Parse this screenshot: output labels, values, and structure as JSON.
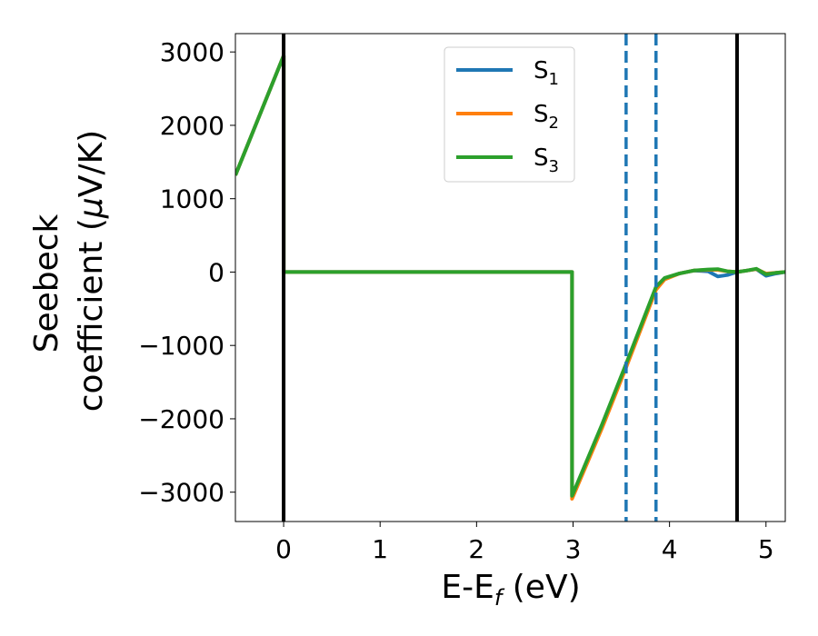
{
  "chart_data": {
    "type": "line",
    "xlabel": "E-E",
    "xlabel_sub": "f",
    "xlabel_unit": " (eV)",
    "ylabel_line1": "Seebeck",
    "ylabel_line2": "coefficient  (",
    "ylabel_mu": "μ",
    "ylabel_unit": "V/K)",
    "xlim": [
      -0.5,
      5.2
    ],
    "ylim": [
      -3400,
      3250
    ],
    "xticks": [
      0,
      1,
      2,
      3,
      4,
      5
    ],
    "xtick_labels": [
      "0",
      "1",
      "2",
      "3",
      "4",
      "5"
    ],
    "yticks": [
      3000,
      2000,
      1000,
      0,
      -1000,
      -2000,
      -3000
    ],
    "ytick_labels": [
      "3000",
      "2000",
      "1000",
      "0",
      "−1000",
      "−2000",
      "−3000"
    ],
    "grid": false,
    "legend_position": "top-center",
    "vlines": [
      {
        "x": 0.0,
        "style": "solid",
        "color": "#000000"
      },
      {
        "x": 4.7,
        "style": "solid",
        "color": "#000000"
      },
      {
        "x": 3.55,
        "style": "dashed",
        "color": "#1f77b4"
      },
      {
        "x": 3.86,
        "style": "dashed",
        "color": "#1f77b4"
      }
    ],
    "series": [
      {
        "name": "S",
        "name_sub": "1",
        "color": "#1f77b4",
        "x": [
          -0.5,
          0.0,
          0.0,
          2.99,
          2.99,
          3.3,
          3.55,
          3.86,
          3.95,
          4.1,
          4.25,
          4.4,
          4.5,
          4.6,
          4.7,
          4.8,
          4.9,
          5.0,
          5.1,
          5.2
        ],
        "y": [
          1320,
          2950,
          0,
          0,
          -3060,
          -2100,
          -1270,
          -220,
          -90,
          -20,
          20,
          10,
          -60,
          -40,
          0,
          20,
          40,
          -50,
          -20,
          0
        ]
      },
      {
        "name": "S",
        "name_sub": "2",
        "color": "#ff7f0e",
        "x": [
          -0.5,
          0.0,
          0.0,
          2.99,
          2.99,
          3.3,
          3.55,
          3.86,
          3.95,
          4.1,
          4.25,
          4.4,
          4.5,
          4.6,
          4.7,
          4.8,
          4.9,
          5.0,
          5.1,
          5.2
        ],
        "y": [
          1320,
          2950,
          0,
          0,
          -3090,
          -2130,
          -1300,
          -240,
          -100,
          -20,
          20,
          30,
          30,
          10,
          0,
          20,
          40,
          -20,
          -10,
          0
        ]
      },
      {
        "name": "S",
        "name_sub": "3",
        "color": "#2ca02c",
        "x": [
          -0.5,
          0.0,
          0.0,
          2.99,
          2.99,
          3.3,
          3.55,
          3.86,
          3.95,
          4.1,
          4.25,
          4.4,
          4.5,
          4.6,
          4.7,
          4.8,
          4.9,
          5.0,
          5.1,
          5.2
        ],
        "y": [
          1320,
          2950,
          0,
          0,
          -3050,
          -2080,
          -1250,
          -200,
          -80,
          -20,
          20,
          35,
          40,
          10,
          0,
          20,
          45,
          -30,
          -10,
          0
        ]
      }
    ]
  }
}
